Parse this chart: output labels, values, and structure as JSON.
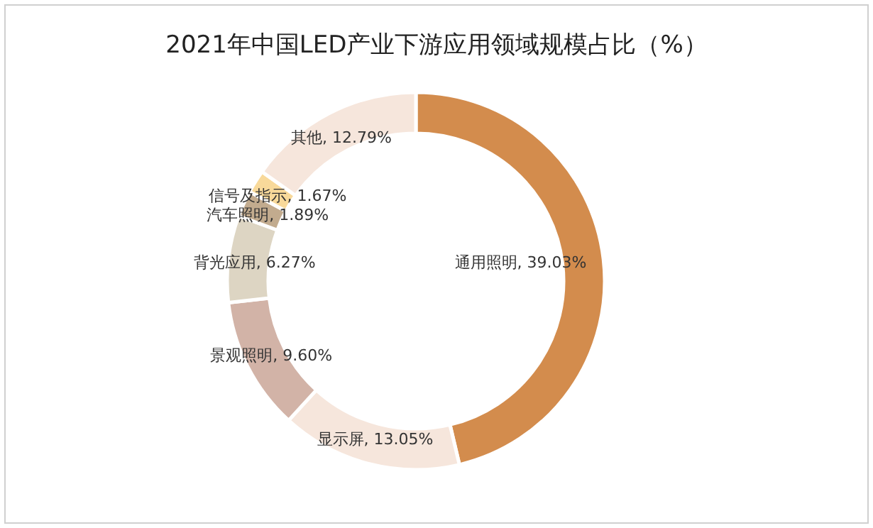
{
  "chart_data": {
    "type": "donut",
    "title": "2021年中国LED产业下游应用领域规模占比（%）",
    "categories": [
      "通用照明",
      "显示屏",
      "景观照明",
      "背光应用",
      "汽车照明",
      "信号及指示",
      "其他"
    ],
    "values": [
      39.03,
      13.05,
      9.6,
      6.27,
      1.89,
      1.67,
      12.79
    ],
    "value_labels": [
      "39.03%",
      "13.05%",
      "9.60%",
      "6.27%",
      "1.89%",
      "1.67%",
      "12.79%"
    ],
    "colors": [
      "#d38c4d",
      "#f6e6dc",
      "#d2b3a7",
      "#ddd5c3",
      "#c2ab8e",
      "#f8d99a",
      "#f6e6dc"
    ]
  }
}
